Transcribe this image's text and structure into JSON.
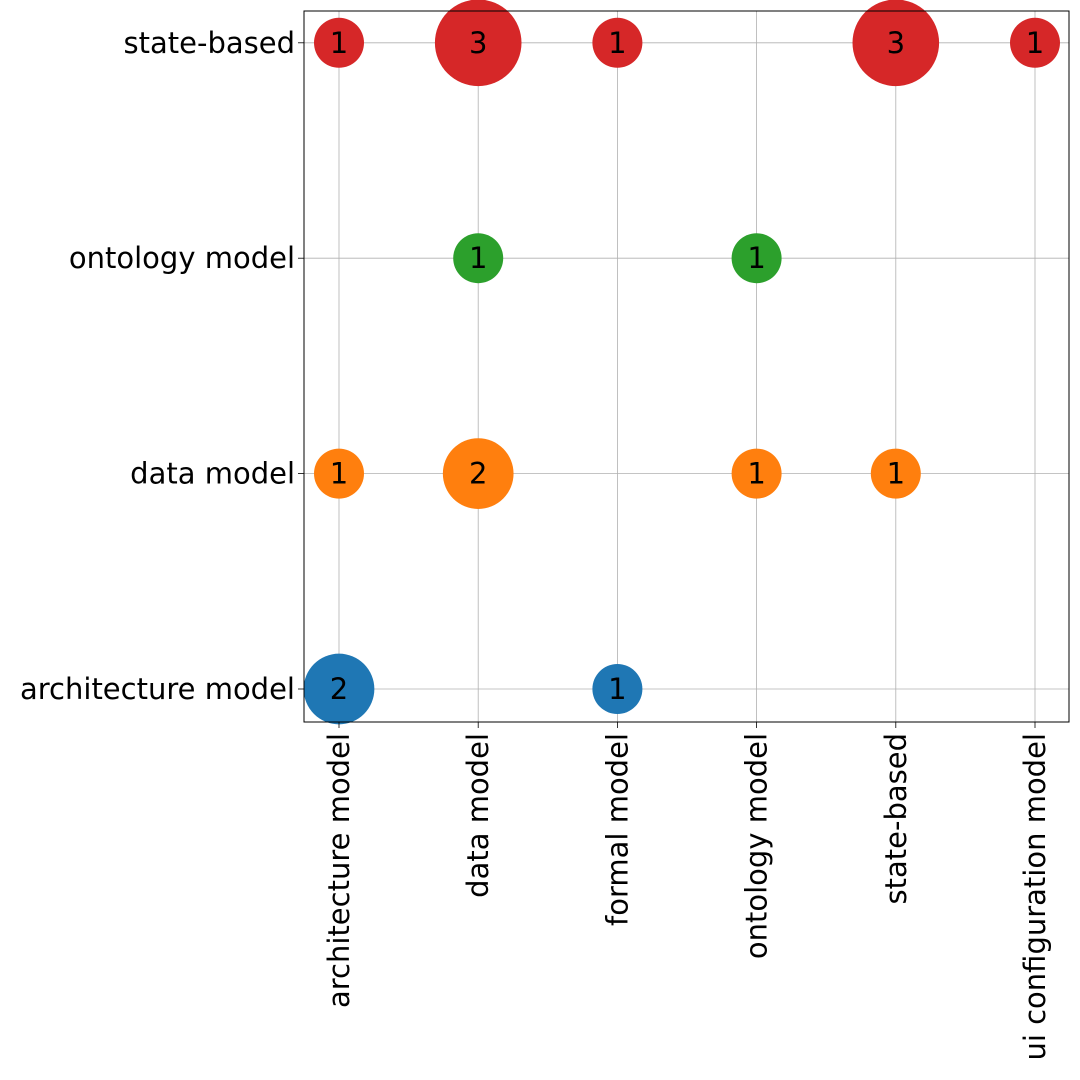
{
  "chart_data": {
    "type": "scatter",
    "subtype": "bubble-matrix",
    "title": "",
    "xlabel": "",
    "ylabel": "",
    "grid": true,
    "legend": "none",
    "x_categories": [
      "architecture model",
      "data model",
      "formal model",
      "ontology model",
      "state-based",
      "ui configuration model"
    ],
    "y_categories": [
      "architecture model",
      "data model",
      "ontology model",
      "state-based"
    ],
    "series": [
      {
        "y": "architecture model",
        "color": "#1f77b4",
        "points": [
          {
            "x": "architecture model",
            "count": 2,
            "label": "2"
          },
          {
            "x": "formal model",
            "count": 1,
            "label": "1"
          }
        ]
      },
      {
        "y": "data model",
        "color": "#ff7f0e",
        "points": [
          {
            "x": "architecture model",
            "count": 1,
            "label": "1"
          },
          {
            "x": "data model",
            "count": 2,
            "label": "2"
          },
          {
            "x": "ontology model",
            "count": 1,
            "label": "1"
          },
          {
            "x": "state-based",
            "count": 1,
            "label": "1"
          }
        ]
      },
      {
        "y": "ontology model",
        "color": "#2ca02c",
        "points": [
          {
            "x": "data model",
            "count": 1,
            "label": "1"
          },
          {
            "x": "ontology model",
            "count": 1,
            "label": "1"
          }
        ]
      },
      {
        "y": "state-based",
        "color": "#d62728",
        "points": [
          {
            "x": "architecture model",
            "count": 1,
            "label": "1"
          },
          {
            "x": "data model",
            "count": 3,
            "label": "3"
          },
          {
            "x": "formal model",
            "count": 1,
            "label": "1"
          },
          {
            "x": "state-based",
            "count": 3,
            "label": "3"
          },
          {
            "x": "ui configuration model",
            "count": 1,
            "label": "1"
          }
        ]
      }
    ]
  }
}
